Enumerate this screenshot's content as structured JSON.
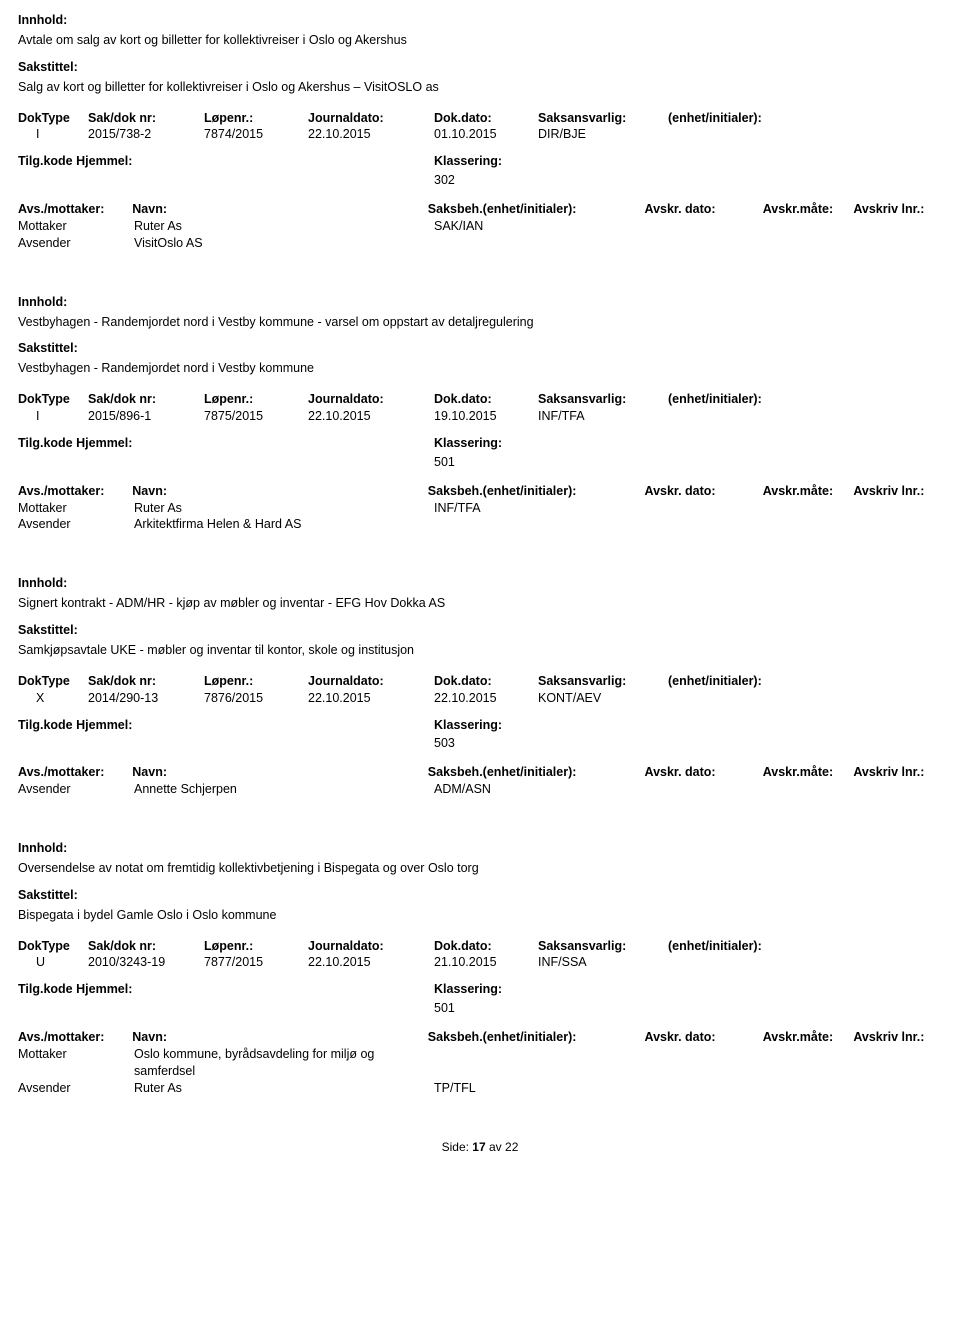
{
  "labels": {
    "innhold": "Innhold:",
    "sakstittel": "Sakstittel:",
    "doktype": "DokType",
    "saknr": "Sak/dok nr:",
    "lopenr": "Løpenr.:",
    "journaldato": "Journaldato:",
    "dokdato": "Dok.dato:",
    "saksansvarlig": "Saksansvarlig:",
    "enhet": "(enhet/initialer):",
    "tilgkode": "Tilg.kode",
    "hjemmel": "Hjemmel:",
    "klassering": "Klassering:",
    "avsmottaker": "Avs./mottaker:",
    "navn": "Navn:",
    "saksbeh": "Saksbeh.(enhet/initialer):",
    "avskrdato": "Avskr. dato:",
    "avskrmate": "Avskr.måte:",
    "avskrivlnr": "Avskriv lnr.:",
    "mottaker": "Mottaker",
    "avsender": "Avsender"
  },
  "records": [
    {
      "innhold": "Avtale om salg av kort og billetter for kollektivreiser i Oslo og Akershus",
      "sakstittel": "Salg av kort og billetter for kollektivreiser i Oslo og Akershus – VisitOSLO as",
      "doktype": "I",
      "saknr": "2015/738-2",
      "lopenr": "7874/2015",
      "journaldato": "22.10.2015",
      "dokdato": "01.10.2015",
      "saksansvarlig": "DIR/BJE",
      "klassering": "302",
      "parties": [
        {
          "role": "Mottaker",
          "navn": "Ruter As",
          "saksbeh": "SAK/IAN"
        },
        {
          "role": "Avsender",
          "navn": "VisitOslo AS",
          "saksbeh": ""
        }
      ]
    },
    {
      "innhold": "Vestbyhagen - Randemjordet nord i Vestby kommune - varsel om oppstart av detaljregulering",
      "sakstittel": "Vestbyhagen - Randemjordet nord i Vestby kommune",
      "doktype": "I",
      "saknr": "2015/896-1",
      "lopenr": "7875/2015",
      "journaldato": "22.10.2015",
      "dokdato": "19.10.2015",
      "saksansvarlig": "INF/TFA",
      "klassering": "501",
      "parties": [
        {
          "role": "Mottaker",
          "navn": "Ruter As",
          "saksbeh": "INF/TFA"
        },
        {
          "role": "Avsender",
          "navn": "Arkitektfirma Helen & Hard AS",
          "saksbeh": ""
        }
      ]
    },
    {
      "innhold": "Signert kontrakt - ADM/HR - kjøp av møbler og inventar - EFG Hov Dokka AS",
      "sakstittel": "Samkjøpsavtale UKE - møbler og inventar til kontor, skole og institusjon",
      "doktype": "X",
      "saknr": "2014/290-13",
      "lopenr": "7876/2015",
      "journaldato": "22.10.2015",
      "dokdato": "22.10.2015",
      "saksansvarlig": "KONT/AEV",
      "klassering": "503",
      "parties": [
        {
          "role": "Avsender",
          "navn": "Annette Schjerpen",
          "saksbeh": "ADM/ASN"
        }
      ]
    },
    {
      "innhold": "Oversendelse av notat om fremtidig kollektivbetjening i Bispegata og over Oslo torg",
      "sakstittel": "Bispegata i bydel Gamle Oslo i Oslo kommune",
      "doktype": "U",
      "saknr": "2010/3243-19",
      "lopenr": "7877/2015",
      "journaldato": "22.10.2015",
      "dokdato": "21.10.2015",
      "saksansvarlig": "INF/SSA",
      "klassering": "501",
      "parties": [
        {
          "role": "Mottaker",
          "navn": "Oslo kommune, byrådsavdeling for miljø og samferdsel",
          "saksbeh": ""
        },
        {
          "role": "Avsender",
          "navn": "Ruter As",
          "saksbeh": "TP/TFL"
        }
      ]
    }
  ],
  "footer": {
    "side": "Side:",
    "page": "17",
    "av": "av",
    "total": "22"
  }
}
